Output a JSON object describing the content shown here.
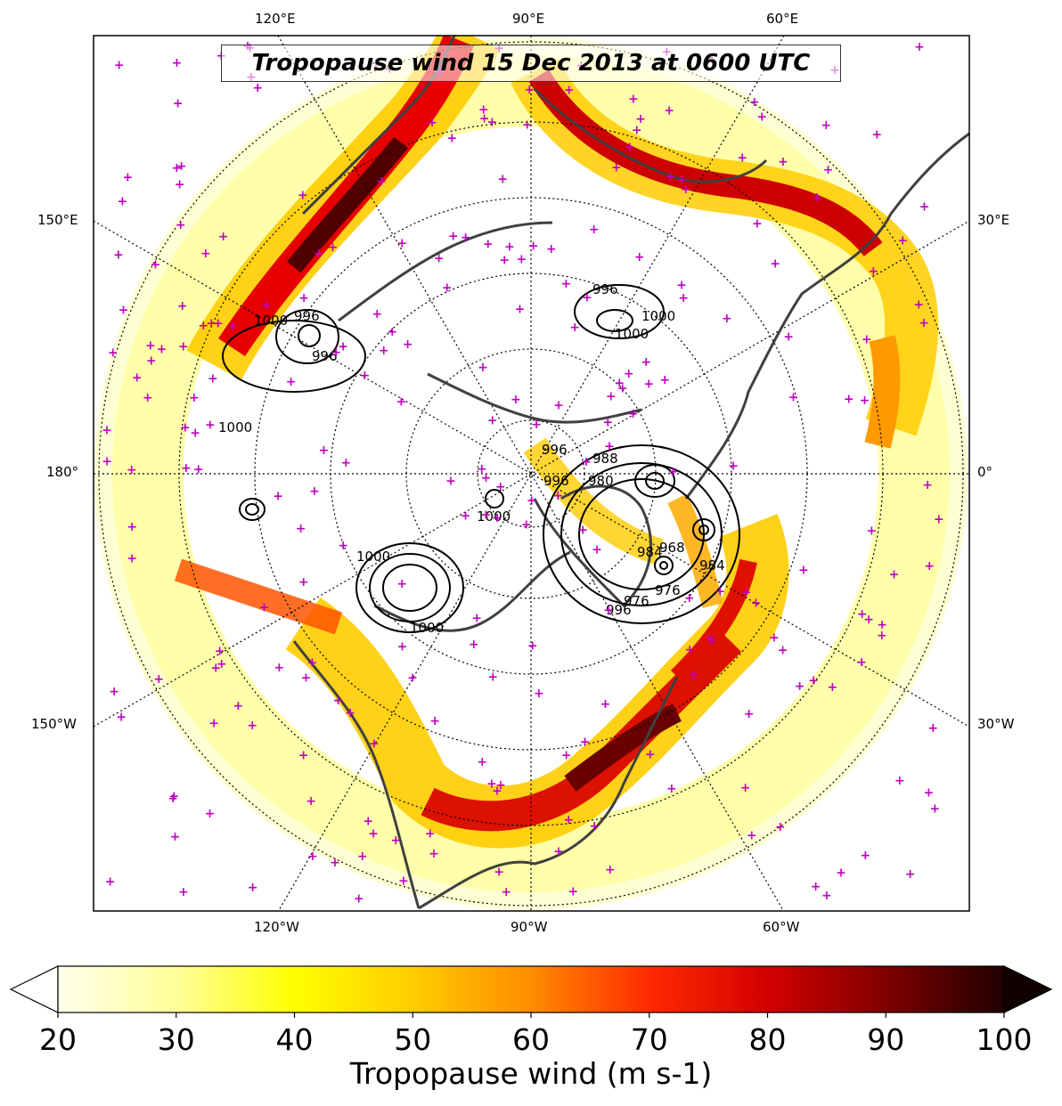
{
  "title": "Tropopause wind 15 Dec 2013 at 0600 UTC",
  "top_lon_labels": [
    "120°E",
    "90°E",
    "60°E"
  ],
  "bottom_lon_labels": [
    "120°W",
    "90°W",
    "60°W"
  ],
  "left_labels": [
    "150°E",
    "180°",
    "150°W"
  ],
  "right_labels": [
    "30°E",
    "0°",
    "30°W"
  ],
  "colorbar": {
    "label": "Tropopause wind (m s-1)",
    "ticks": [
      "20",
      "30",
      "40",
      "50",
      "60",
      "70",
      "80",
      "90",
      "100"
    ],
    "min": 20,
    "max": 100,
    "extend": "both",
    "colormap": "hot_r",
    "colors": [
      "#ffffff",
      "#fff9b0",
      "#ffff33",
      "#ffd700",
      "#ff9900",
      "#ff5500",
      "#ff0000",
      "#c40000",
      "#7a0000",
      "#2a0000"
    ]
  },
  "contour_labels": [
    "1000",
    "996",
    "996",
    "1000",
    "996",
    "1000",
    "996",
    "1000",
    "988",
    "980",
    "996",
    "976",
    "984",
    "968",
    "976",
    "984",
    "996",
    "1000",
    "1000",
    "1000"
  ],
  "colors": {
    "coastline": "#404040",
    "station_marker": "#c000c0",
    "contour": "#000000"
  }
}
